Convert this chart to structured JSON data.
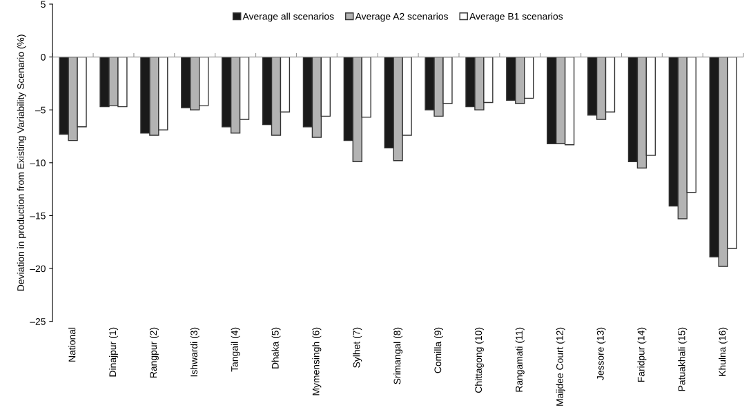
{
  "chart_data": {
    "type": "bar",
    "ylabel": "Deviation in production from Existing Variability Scenario (%)",
    "categories": [
      "National",
      "Dinajpur (1)",
      "Rangpur (2)",
      "Ishwardi (3)",
      "Tangail (4)",
      "Dhaka (5)",
      "Mymensingh (6)",
      "Sylhet (7)",
      "Srimangal (8)",
      "Comilla (9)",
      "Chittagong (10)",
      "Rangamati (11)",
      "Maijdee Court (12)",
      "Jessore (13)",
      "Faridpur (14)",
      "Patuakhali (15)",
      "Khulna (16)"
    ],
    "series": [
      {
        "name": "Average all scenarios",
        "color": "#1a1a1a",
        "values": [
          -7.3,
          -4.7,
          -7.2,
          -4.8,
          -6.6,
          -6.4,
          -6.6,
          -7.9,
          -8.6,
          -5.0,
          -4.7,
          -4.1,
          -8.2,
          -5.5,
          -9.9,
          -14.1,
          -18.9
        ]
      },
      {
        "name": "Average A2 scenarios",
        "color": "#b3b3b3",
        "values": [
          -7.9,
          -4.6,
          -7.4,
          -5.0,
          -7.2,
          -7.4,
          -7.6,
          -9.9,
          -9.8,
          -5.6,
          -5.0,
          -4.4,
          -8.2,
          -5.9,
          -10.5,
          -15.3,
          -19.8
        ]
      },
      {
        "name": "Average B1 scenarios",
        "color": "#ffffff",
        "values": [
          -6.6,
          -4.7,
          -6.9,
          -4.6,
          -5.9,
          -5.2,
          -5.6,
          -5.7,
          -7.4,
          -4.4,
          -4.3,
          -3.9,
          -8.3,
          -5.2,
          -9.3,
          -12.8,
          -18.1
        ]
      }
    ],
    "ylim": [
      -25,
      5
    ],
    "yticks": [
      5,
      0,
      {
        "value": -5,
        "label": "–5"
      },
      {
        "value": -10,
        "label": "–10"
      },
      {
        "value": -15,
        "label": "–15"
      },
      {
        "value": -20,
        "label": "–20"
      },
      {
        "value": -25,
        "label": "–25"
      }
    ],
    "ref_lines": [
      {
        "axis": "y",
        "value": 0,
        "color": "#999999"
      }
    ],
    "legend": "top",
    "grid": false
  }
}
